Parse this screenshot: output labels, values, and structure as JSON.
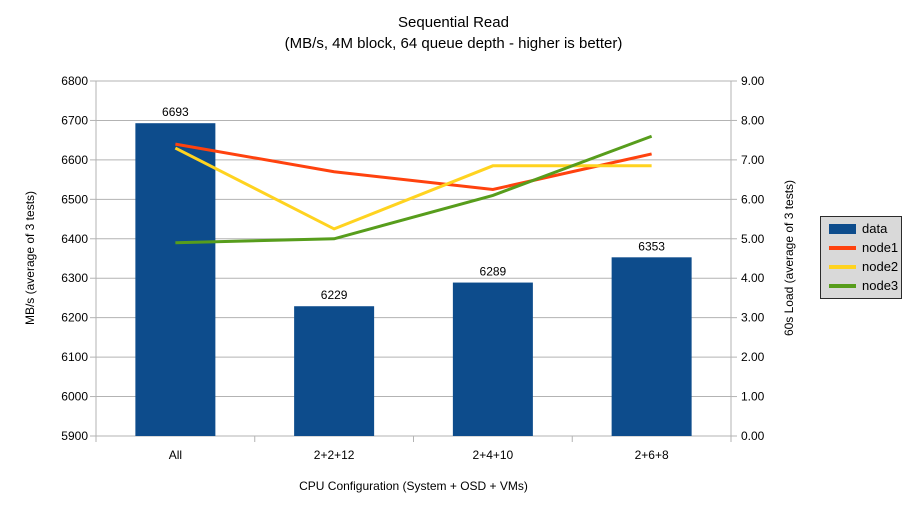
{
  "title": {
    "line1": "Sequential Read",
    "line2": "(MB/s, 4M block, 64 queue depth - higher is better)"
  },
  "chart_data": {
    "type": "combo-bar-line",
    "categories": [
      "All",
      "2+2+12",
      "2+4+10",
      "2+6+8"
    ],
    "bar_series": {
      "name": "data",
      "color": "#0d4c8c",
      "axis": "left",
      "values": [
        6693,
        6229,
        6289,
        6353
      ],
      "value_labels": [
        "6693",
        "6229",
        "6289",
        "6353"
      ]
    },
    "line_series": [
      {
        "name": "node1",
        "color": "#ff420e",
        "axis": "right",
        "values": [
          7.4,
          6.7,
          6.25,
          7.15
        ]
      },
      {
        "name": "node2",
        "color": "#ffd320",
        "axis": "right",
        "values": [
          7.3,
          5.25,
          6.85,
          6.85
        ]
      },
      {
        "name": "node3",
        "color": "#579d1c",
        "axis": "right",
        "values": [
          4.9,
          5.0,
          6.1,
          7.6
        ]
      }
    ],
    "left_axis": {
      "label": "MB/s (average of 3 tests)",
      "min": 5900,
      "max": 6800,
      "step": 100,
      "decimals": 0
    },
    "right_axis": {
      "label": "60s Load (average of 3 tests)",
      "min": 0,
      "max": 9,
      "step": 1,
      "decimals": 2
    },
    "x_axis": {
      "label": "CPU Configuration (System + OSD + VMs)"
    },
    "grid": "horizontal",
    "grid_color": "#b3b3b3",
    "legend": {
      "position": "right",
      "items": [
        {
          "label": "data",
          "type": "bar",
          "color": "#0d4c8c"
        },
        {
          "label": "node1",
          "type": "line",
          "color": "#ff420e"
        },
        {
          "label": "node2",
          "type": "line",
          "color": "#ffd320"
        },
        {
          "label": "node3",
          "type": "line",
          "color": "#579d1c"
        }
      ]
    }
  }
}
